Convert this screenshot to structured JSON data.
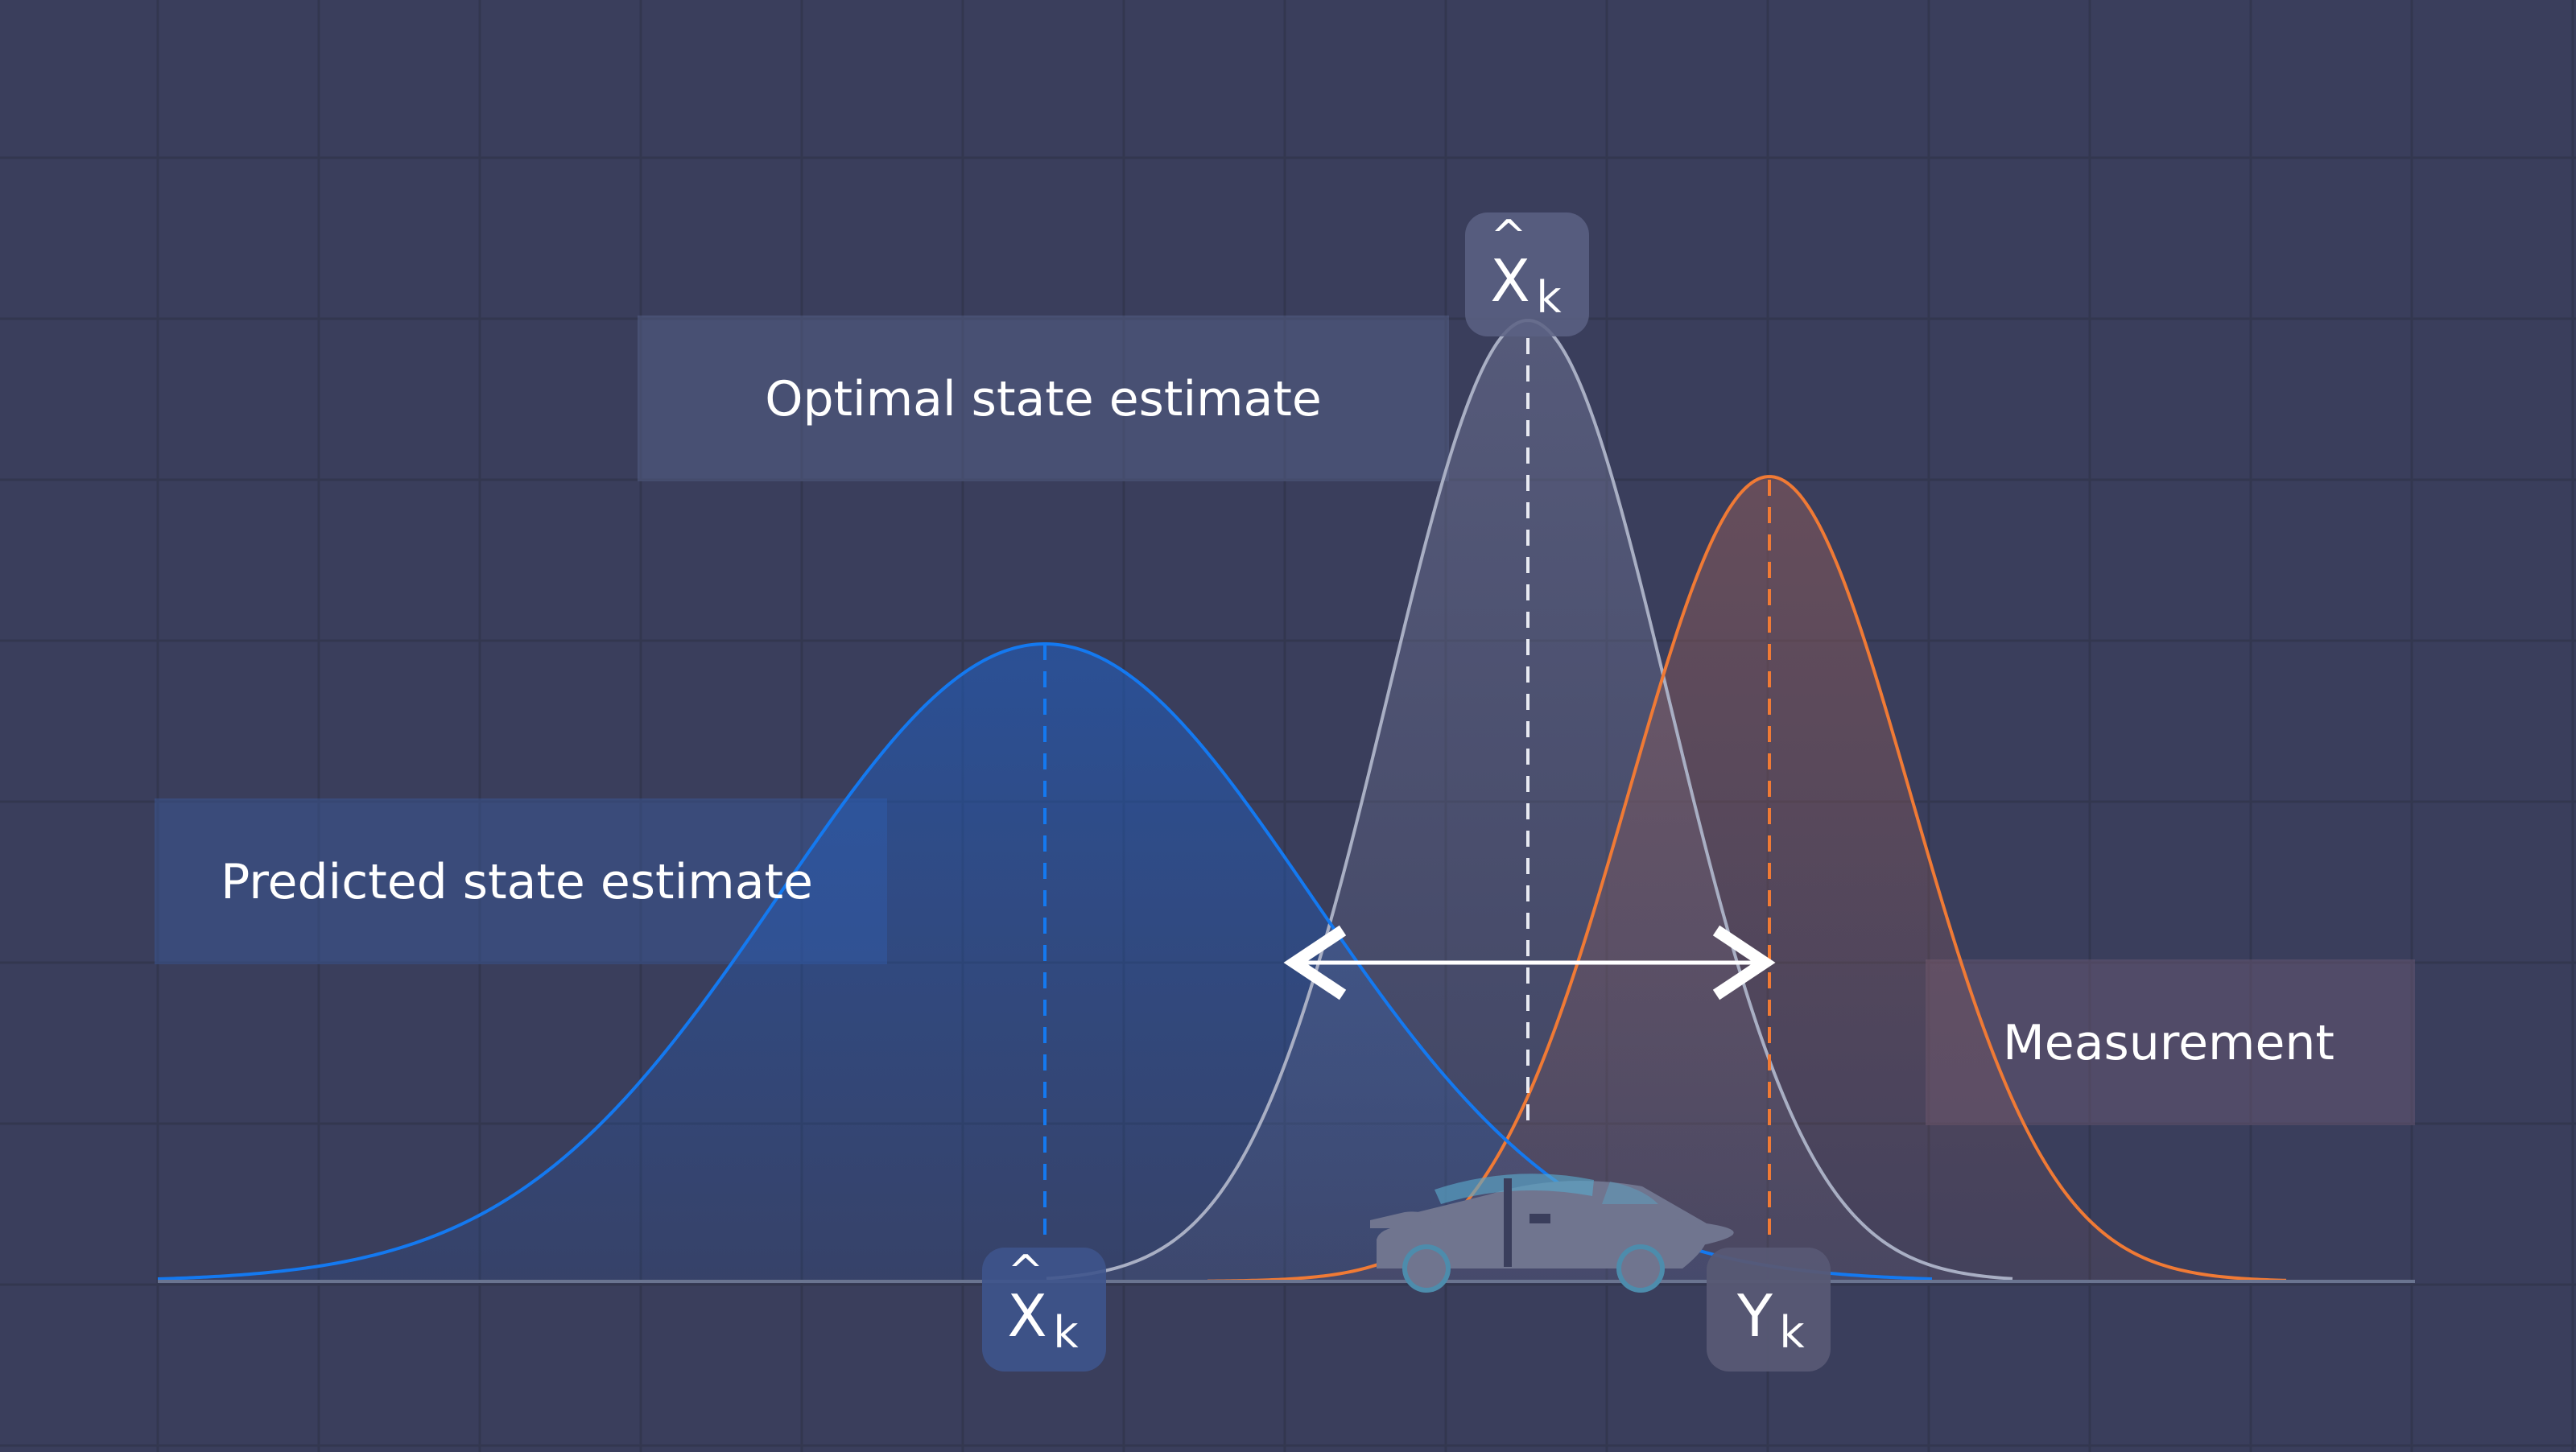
{
  "labels": {
    "optimal": "Optimal state estimate",
    "predicted": "Predicted state estimate",
    "measurement": "Measurement"
  },
  "symbols": {
    "optimal": {
      "main": "X",
      "sub": "k",
      "hat": "^"
    },
    "predicted": {
      "main": "X",
      "sub": "k",
      "hat": "^"
    },
    "measurement": {
      "main": "Y",
      "sub": "k"
    }
  },
  "colors": {
    "background": "#3a3e5c",
    "grid": "#33374f",
    "predicted": "#1479f0",
    "optimal": "#a9afc4",
    "measurement": "#f07a35",
    "baseline": "#6a7490",
    "arrow": "#ffffff"
  },
  "icons": {
    "car": "car-icon",
    "arrow": "double-headed-arrow-icon"
  }
}
